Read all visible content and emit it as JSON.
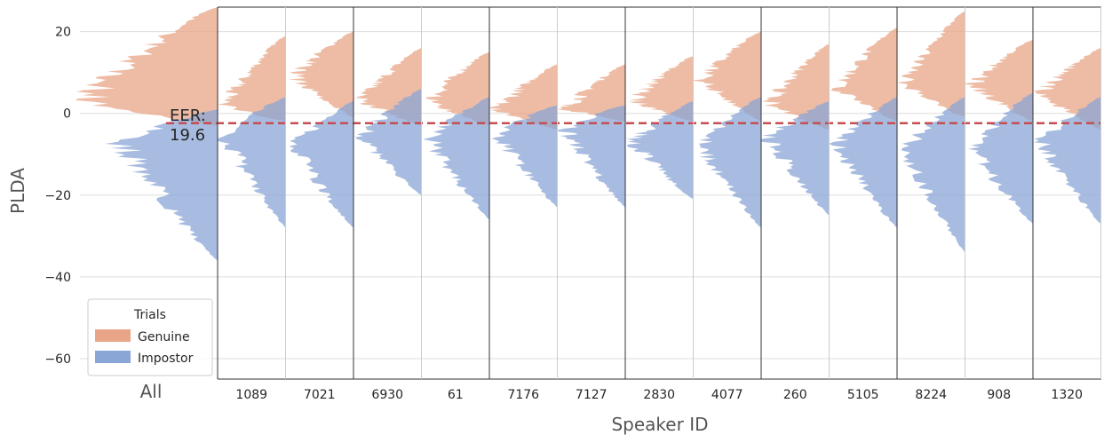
{
  "chart_data": {
    "type": "area",
    "ylabel": "PLDA",
    "xlabel": "Speaker ID",
    "ylim": [
      -65,
      26
    ],
    "yticks": [
      20,
      0,
      -20,
      -40,
      -60
    ],
    "ytick_labels": [
      "20",
      "0",
      "−20",
      "−40",
      "−60"
    ],
    "overall_label": "All",
    "speakers": [
      "1089",
      "7021",
      "6930",
      "61",
      "7176",
      "7127",
      "2830",
      "4077",
      "260",
      "5105",
      "8224",
      "908",
      "1320"
    ],
    "eer": {
      "value": -2.4,
      "label_line1": "EER:",
      "label_line2": "19.6"
    },
    "legend": {
      "title": "Trials",
      "placement": "lower-left",
      "entries": [
        {
          "name": "Genuine",
          "color": "#e8a587"
        },
        {
          "name": "Impostor",
          "color": "#8aa6d6"
        }
      ]
    },
    "series": [
      {
        "name": "Genuine",
        "color": "#e8a587"
      },
      {
        "name": "Impostor",
        "color": "#8aa6d6"
      }
    ],
    "distributions": {
      "overall": {
        "genuine": {
          "min": -3,
          "max": 26,
          "mode": 3,
          "peak": 1.0
        },
        "impostor": {
          "min": -36,
          "max": 1,
          "mode": -7,
          "peak": 1.0
        }
      },
      "per_speaker": [
        {
          "speaker": "1089",
          "genuine": {
            "min": -2,
            "max": 19,
            "mode": 2
          },
          "impostor": {
            "min": -28,
            "max": 4,
            "mode": -6
          }
        },
        {
          "speaker": "7021",
          "genuine": {
            "min": -1,
            "max": 20,
            "mode": 9
          },
          "impostor": {
            "min": -28,
            "max": 3,
            "mode": -8
          }
        },
        {
          "speaker": "6930",
          "genuine": {
            "min": -3,
            "max": 16,
            "mode": 3
          },
          "impostor": {
            "min": -20,
            "max": 6,
            "mode": -6
          }
        },
        {
          "speaker": "61",
          "genuine": {
            "min": -3,
            "max": 15,
            "mode": 3
          },
          "impostor": {
            "min": -26,
            "max": 4,
            "mode": -6
          }
        },
        {
          "speaker": "7176",
          "genuine": {
            "min": -4,
            "max": 12,
            "mode": 1
          },
          "impostor": {
            "min": -23,
            "max": 2,
            "mode": -5
          }
        },
        {
          "speaker": "7127",
          "genuine": {
            "min": -2,
            "max": 12,
            "mode": 1
          },
          "impostor": {
            "min": -23,
            "max": 2,
            "mode": -4
          }
        },
        {
          "speaker": "2830",
          "genuine": {
            "min": -2,
            "max": 14,
            "mode": 3
          },
          "impostor": {
            "min": -21,
            "max": 3,
            "mode": -7
          }
        },
        {
          "speaker": "4077",
          "genuine": {
            "min": -2,
            "max": 20,
            "mode": 8
          },
          "impostor": {
            "min": -28,
            "max": 4,
            "mode": -8
          }
        },
        {
          "speaker": "260",
          "genuine": {
            "min": -4,
            "max": 17,
            "mode": 2
          },
          "impostor": {
            "min": -25,
            "max": 3,
            "mode": -6
          }
        },
        {
          "speaker": "5105",
          "genuine": {
            "min": -2,
            "max": 21,
            "mode": 6
          },
          "impostor": {
            "min": -28,
            "max": 4,
            "mode": -8
          }
        },
        {
          "speaker": "8224",
          "genuine": {
            "min": -1,
            "max": 25,
            "mode": 7
          },
          "impostor": {
            "min": -34,
            "max": 4,
            "mode": -9
          }
        },
        {
          "speaker": "908",
          "genuine": {
            "min": -2,
            "max": 18,
            "mode": 7
          },
          "impostor": {
            "min": -27,
            "max": 5,
            "mode": -9
          }
        },
        {
          "speaker": "1320",
          "genuine": {
            "min": -4,
            "max": 16,
            "mode": 5
          },
          "impostor": {
            "min": -27,
            "max": 4,
            "mode": -7
          }
        }
      ]
    }
  }
}
